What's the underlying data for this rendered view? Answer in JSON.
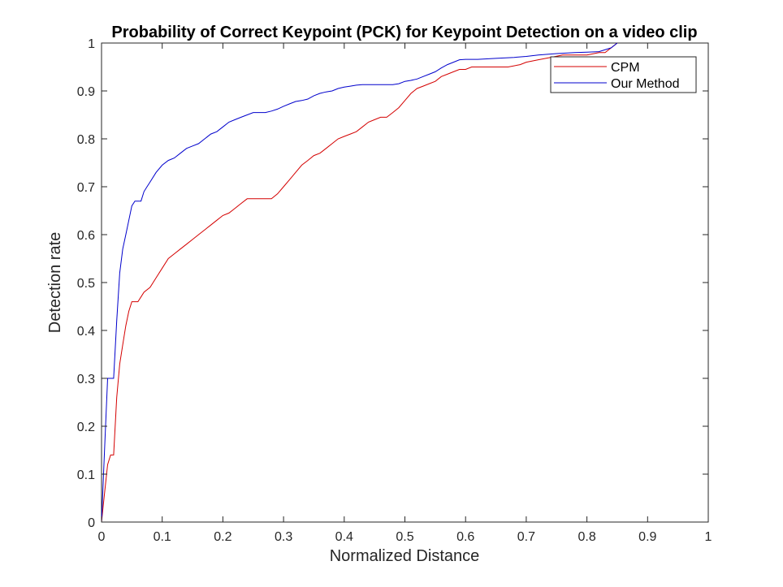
{
  "chart_data": {
    "type": "line",
    "title": "Probability of Correct Keypoint (PCK) for Keypoint Detection on a video clip",
    "xlabel": "Normalized Distance",
    "ylabel": "Detection rate",
    "xlim": [
      0,
      1
    ],
    "ylim": [
      0,
      1
    ],
    "xticks": [
      "0",
      "0.1",
      "0.2",
      "0.3",
      "0.4",
      "0.5",
      "0.6",
      "0.7",
      "0.8",
      "0.9",
      "1"
    ],
    "yticks": [
      "0",
      "0.1",
      "0.2",
      "0.3",
      "0.4",
      "0.5",
      "0.6",
      "0.7",
      "0.8",
      "0.9",
      "1"
    ],
    "grid": false,
    "legend_position": "top-right",
    "series": [
      {
        "name": "CPM",
        "color": "#d40000",
        "x": [
          0,
          0.005,
          0.01,
          0.015,
          0.02,
          0.025,
          0.03,
          0.035,
          0.04,
          0.045,
          0.05,
          0.06,
          0.065,
          0.07,
          0.08,
          0.09,
          0.1,
          0.11,
          0.12,
          0.13,
          0.14,
          0.15,
          0.16,
          0.17,
          0.18,
          0.19,
          0.2,
          0.21,
          0.22,
          0.23,
          0.24,
          0.25,
          0.26,
          0.27,
          0.28,
          0.29,
          0.3,
          0.31,
          0.32,
          0.33,
          0.34,
          0.35,
          0.36,
          0.37,
          0.38,
          0.39,
          0.4,
          0.41,
          0.42,
          0.43,
          0.44,
          0.45,
          0.46,
          0.47,
          0.48,
          0.49,
          0.5,
          0.51,
          0.52,
          0.53,
          0.54,
          0.55,
          0.56,
          0.57,
          0.58,
          0.59,
          0.6,
          0.61,
          0.62,
          0.63,
          0.65,
          0.67,
          0.69,
          0.7,
          0.72,
          0.74,
          0.76,
          0.78,
          0.8,
          0.82,
          0.83,
          0.84,
          0.85
        ],
        "y": [
          0,
          0.06,
          0.12,
          0.14,
          0.14,
          0.26,
          0.33,
          0.37,
          0.41,
          0.44,
          0.46,
          0.46,
          0.47,
          0.48,
          0.49,
          0.51,
          0.53,
          0.55,
          0.56,
          0.57,
          0.58,
          0.59,
          0.6,
          0.61,
          0.62,
          0.63,
          0.64,
          0.645,
          0.655,
          0.665,
          0.675,
          0.675,
          0.675,
          0.675,
          0.675,
          0.685,
          0.7,
          0.715,
          0.73,
          0.745,
          0.755,
          0.765,
          0.77,
          0.78,
          0.79,
          0.8,
          0.805,
          0.81,
          0.815,
          0.825,
          0.835,
          0.84,
          0.845,
          0.845,
          0.855,
          0.865,
          0.88,
          0.895,
          0.905,
          0.91,
          0.915,
          0.92,
          0.93,
          0.935,
          0.94,
          0.945,
          0.945,
          0.95,
          0.95,
          0.95,
          0.95,
          0.95,
          0.955,
          0.96,
          0.965,
          0.97,
          0.975,
          0.975,
          0.975,
          0.98,
          0.98,
          0.99,
          1.0
        ]
      },
      {
        "name": "Our Method",
        "color": "#0000cc",
        "x": [
          0,
          0.005,
          0.01,
          0.02,
          0.025,
          0.03,
          0.035,
          0.04,
          0.045,
          0.05,
          0.055,
          0.06,
          0.065,
          0.07,
          0.075,
          0.08,
          0.09,
          0.1,
          0.11,
          0.12,
          0.13,
          0.14,
          0.15,
          0.16,
          0.17,
          0.18,
          0.19,
          0.2,
          0.21,
          0.22,
          0.23,
          0.24,
          0.25,
          0.26,
          0.27,
          0.28,
          0.29,
          0.3,
          0.31,
          0.32,
          0.33,
          0.34,
          0.35,
          0.36,
          0.37,
          0.38,
          0.39,
          0.4,
          0.41,
          0.42,
          0.43,
          0.44,
          0.45,
          0.46,
          0.47,
          0.48,
          0.49,
          0.5,
          0.51,
          0.52,
          0.53,
          0.54,
          0.55,
          0.56,
          0.57,
          0.58,
          0.59,
          0.6,
          0.62,
          0.65,
          0.68,
          0.7,
          0.72,
          0.75,
          0.78,
          0.8,
          0.82,
          0.84,
          0.85
        ],
        "y": [
          0,
          0.15,
          0.3,
          0.3,
          0.42,
          0.52,
          0.57,
          0.6,
          0.63,
          0.66,
          0.67,
          0.67,
          0.67,
          0.69,
          0.7,
          0.71,
          0.73,
          0.745,
          0.755,
          0.76,
          0.77,
          0.78,
          0.785,
          0.79,
          0.8,
          0.81,
          0.815,
          0.825,
          0.835,
          0.84,
          0.845,
          0.85,
          0.855,
          0.855,
          0.855,
          0.858,
          0.862,
          0.868,
          0.873,
          0.878,
          0.88,
          0.883,
          0.89,
          0.895,
          0.898,
          0.9,
          0.905,
          0.908,
          0.91,
          0.912,
          0.913,
          0.913,
          0.913,
          0.913,
          0.913,
          0.913,
          0.915,
          0.92,
          0.922,
          0.925,
          0.93,
          0.935,
          0.94,
          0.948,
          0.955,
          0.96,
          0.965,
          0.966,
          0.966,
          0.968,
          0.97,
          0.972,
          0.975,
          0.978,
          0.98,
          0.981,
          0.982,
          0.99,
          1.0
        ]
      }
    ]
  }
}
